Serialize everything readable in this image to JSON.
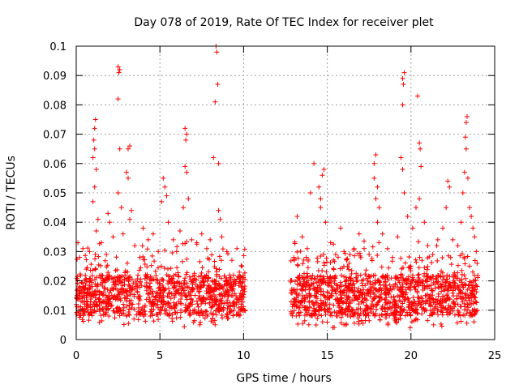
{
  "chart_data": {
    "type": "scatter",
    "title": "Day 078 of 2019, Rate Of TEC Index for receiver plet",
    "xlabel": "GPS time / hours",
    "ylabel": "ROTI / TECUs",
    "xlim": [
      0,
      25
    ],
    "ylim": [
      0,
      0.1
    ],
    "xticks": [
      0,
      5,
      10,
      15,
      20,
      25
    ],
    "yticks": [
      0,
      0.01,
      0.02,
      0.03,
      0.04,
      0.05,
      0.06,
      0.07,
      0.08,
      0.09,
      0.1
    ],
    "xtick_labels": [
      "0",
      "5",
      "10",
      "15",
      "20",
      "25"
    ],
    "ytick_labels": [
      "0",
      "0.01",
      "0.02",
      "0.03",
      "0.04",
      "0.05",
      "0.06",
      "0.07",
      "0.08",
      "0.09",
      "0.1"
    ],
    "grid": true,
    "marker": "+",
    "series_color": "#ff0000",
    "data_gap_hours": [
      10.1,
      12.8
    ],
    "series": [
      {
        "name": "ROTI",
        "points": [
          [
            0.1,
            0.033
          ],
          [
            0.2,
            0.028
          ],
          [
            0.4,
            0.031
          ],
          [
            0.6,
            0.024
          ],
          [
            0.8,
            0.03
          ],
          [
            1.0,
            0.062
          ],
          [
            1.05,
            0.068
          ],
          [
            1.1,
            0.072
          ],
          [
            1.15,
            0.075
          ],
          [
            1.1,
            0.065
          ],
          [
            1.2,
            0.058
          ],
          [
            1.0,
            0.047
          ],
          [
            1.1,
            0.052
          ],
          [
            1.3,
            0.041
          ],
          [
            1.2,
            0.037
          ],
          [
            1.5,
            0.033
          ],
          [
            1.8,
            0.029
          ],
          [
            1.9,
            0.043
          ],
          [
            2.0,
            0.04
          ],
          [
            2.2,
            0.035
          ],
          [
            2.5,
            0.093
          ],
          [
            2.55,
            0.091
          ],
          [
            2.6,
            0.092
          ],
          [
            2.5,
            0.082
          ],
          [
            2.6,
            0.065
          ],
          [
            2.5,
            0.05
          ],
          [
            2.7,
            0.045
          ],
          [
            2.8,
            0.036
          ],
          [
            3.0,
            0.057
          ],
          [
            3.1,
            0.065
          ],
          [
            3.2,
            0.066
          ],
          [
            3.1,
            0.055
          ],
          [
            3.3,
            0.044
          ],
          [
            3.2,
            0.041
          ],
          [
            3.5,
            0.032
          ],
          [
            3.8,
            0.028
          ],
          [
            4.0,
            0.038
          ],
          [
            4.3,
            0.034
          ],
          [
            4.6,
            0.036
          ],
          [
            4.9,
            0.03
          ],
          [
            5.1,
            0.047
          ],
          [
            5.2,
            0.055
          ],
          [
            5.3,
            0.052
          ],
          [
            5.4,
            0.049
          ],
          [
            5.5,
            0.04
          ],
          [
            5.8,
            0.034
          ],
          [
            6.0,
            0.03
          ],
          [
            6.2,
            0.037
          ],
          [
            6.4,
            0.045
          ],
          [
            6.5,
            0.072
          ],
          [
            6.6,
            0.07
          ],
          [
            6.55,
            0.068
          ],
          [
            6.5,
            0.059
          ],
          [
            6.6,
            0.057
          ],
          [
            6.7,
            0.048
          ],
          [
            6.9,
            0.034
          ],
          [
            7.2,
            0.033
          ],
          [
            7.5,
            0.036
          ],
          [
            7.8,
            0.031
          ],
          [
            8.0,
            0.034
          ],
          [
            8.2,
            0.062
          ],
          [
            8.3,
            0.081
          ],
          [
            8.35,
            0.1
          ],
          [
            8.4,
            0.098
          ],
          [
            8.45,
            0.087
          ],
          [
            8.5,
            0.06
          ],
          [
            8.5,
            0.044
          ],
          [
            8.6,
            0.041
          ],
          [
            8.7,
            0.035
          ],
          [
            9.0,
            0.03
          ],
          [
            9.3,
            0.027
          ],
          [
            9.6,
            0.031
          ],
          [
            9.9,
            0.025
          ],
          [
            13.0,
            0.028
          ],
          [
            13.2,
            0.042
          ],
          [
            13.5,
            0.035
          ],
          [
            13.8,
            0.031
          ],
          [
            14.0,
            0.05
          ],
          [
            14.2,
            0.06
          ],
          [
            14.5,
            0.052
          ],
          [
            14.6,
            0.048
          ],
          [
            14.7,
            0.056
          ],
          [
            14.8,
            0.058
          ],
          [
            14.6,
            0.045
          ],
          [
            14.9,
            0.04
          ],
          [
            15.2,
            0.033
          ],
          [
            15.5,
            0.029
          ],
          [
            15.8,
            0.038
          ],
          [
            16.0,
            0.03
          ],
          [
            16.3,
            0.026
          ],
          [
            16.6,
            0.031
          ],
          [
            16.9,
            0.036
          ],
          [
            17.2,
            0.031
          ],
          [
            17.5,
            0.029
          ],
          [
            17.8,
            0.06
          ],
          [
            17.9,
            0.063
          ],
          [
            17.8,
            0.055
          ],
          [
            18.0,
            0.052
          ],
          [
            17.9,
            0.048
          ],
          [
            18.1,
            0.045
          ],
          [
            18.0,
            0.04
          ],
          [
            18.3,
            0.036
          ],
          [
            18.6,
            0.031
          ],
          [
            18.9,
            0.028
          ],
          [
            19.2,
            0.035
          ],
          [
            19.4,
            0.062
          ],
          [
            19.5,
            0.08
          ],
          [
            19.55,
            0.087
          ],
          [
            19.6,
            0.091
          ],
          [
            19.5,
            0.089
          ],
          [
            19.5,
            0.058
          ],
          [
            19.6,
            0.05
          ],
          [
            19.8,
            0.042
          ],
          [
            20.1,
            0.038
          ],
          [
            20.3,
            0.045
          ],
          [
            20.4,
            0.083
          ],
          [
            20.5,
            0.067
          ],
          [
            20.55,
            0.065
          ],
          [
            20.6,
            0.059
          ],
          [
            20.5,
            0.048
          ],
          [
            20.8,
            0.04
          ],
          [
            21.0,
            0.032
          ],
          [
            21.3,
            0.029
          ],
          [
            21.6,
            0.034
          ],
          [
            21.9,
            0.038
          ],
          [
            22.1,
            0.045
          ],
          [
            22.2,
            0.054
          ],
          [
            22.3,
            0.052
          ],
          [
            22.5,
            0.034
          ],
          [
            22.8,
            0.032
          ],
          [
            23.0,
            0.04
          ],
          [
            23.1,
            0.05
          ],
          [
            23.2,
            0.057
          ],
          [
            23.25,
            0.069
          ],
          [
            23.3,
            0.074
          ],
          [
            23.35,
            0.076
          ],
          [
            23.3,
            0.065
          ],
          [
            23.4,
            0.055
          ],
          [
            23.5,
            0.045
          ],
          [
            23.6,
            0.042
          ],
          [
            23.7,
            0.038
          ],
          [
            23.8,
            0.035
          ],
          [
            23.9,
            0.03
          ],
          [
            23.95,
            0.026
          ]
        ]
      }
    ]
  }
}
